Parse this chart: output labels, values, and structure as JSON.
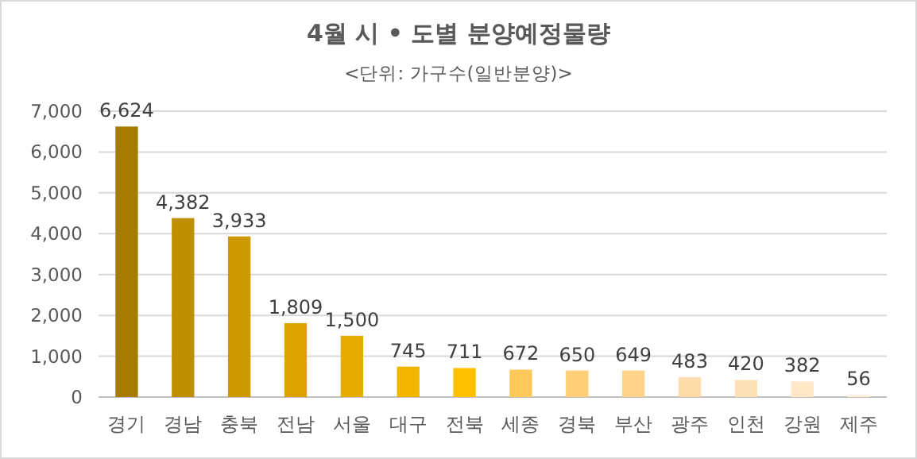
{
  "chart_data": {
    "type": "bar",
    "title": "4월 시 • 도별 분양예정물량",
    "subtitle": "<단위: 가구수(일반분양)>",
    "categories": [
      "경기",
      "경남",
      "충북",
      "전남",
      "서울",
      "대구",
      "전북",
      "세종",
      "경북",
      "부산",
      "광주",
      "인천",
      "강원",
      "제주"
    ],
    "values": [
      6624,
      4382,
      3933,
      1809,
      1500,
      745,
      711,
      672,
      650,
      649,
      483,
      420,
      382,
      56
    ],
    "colors": [
      "#a67c00",
      "#bf8f00",
      "#cc9900",
      "#dba200",
      "#e6ad00",
      "#f2b600",
      "#ffc000",
      "#ffc85a",
      "#ffcf78",
      "#ffd48a",
      "#ffdcaa",
      "#ffe2b8",
      "#ffe8c8",
      "#fff0dc"
    ],
    "ylim": [
      0,
      7000
    ],
    "yticks": [
      {
        "value": 0,
        "label": "0"
      },
      {
        "value": 1000,
        "label": "1,000"
      },
      {
        "value": 2000,
        "label": "2,000"
      },
      {
        "value": 3000,
        "label": "3,000"
      },
      {
        "value": 4000,
        "label": "4,000"
      },
      {
        "value": 5000,
        "label": "5,000"
      },
      {
        "value": 6000,
        "label": "6,000"
      },
      {
        "value": 7000,
        "label": "7,000"
      }
    ],
    "value_labels": [
      "6,624",
      "4,382",
      "3,933",
      "1,809",
      "1,500",
      "745",
      "711",
      "672",
      "650",
      "649",
      "483",
      "420",
      "382",
      "56"
    ],
    "grid": "y"
  }
}
